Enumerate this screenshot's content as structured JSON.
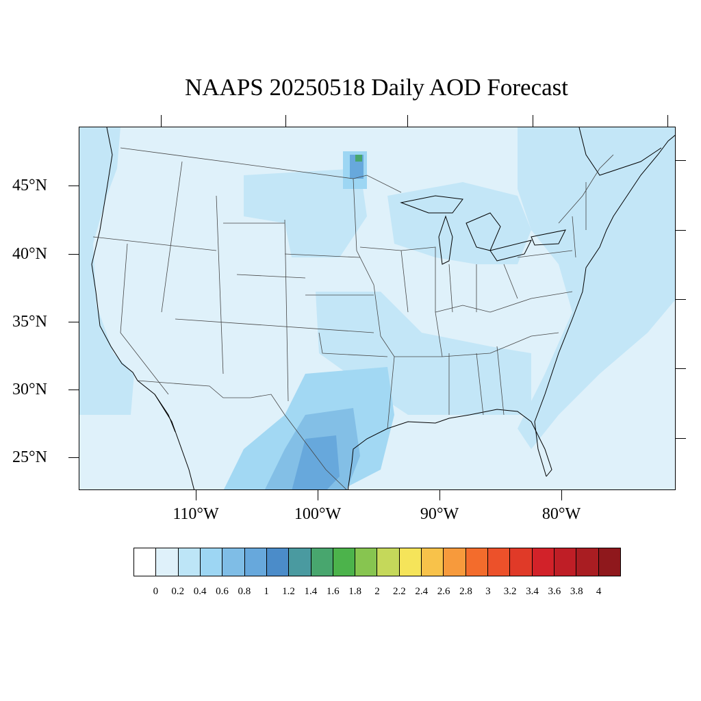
{
  "title": "NAAPS 20250518 Daily AOD Forecast",
  "lat_labels": [
    "45°N",
    "40°N",
    "35°N",
    "30°N",
    "25°N"
  ],
  "lon_labels": [
    "110°W",
    "100°W",
    "90°W",
    "80°W"
  ],
  "colorbar": {
    "colors": [
      "#ffffff",
      "#dff1fa",
      "#bde5f7",
      "#9dd6f3",
      "#7fbde6",
      "#67a8dc",
      "#4b8cc9",
      "#4a9aa0",
      "#48a66e",
      "#4cb34b",
      "#87c550",
      "#c5d85a",
      "#f5e45a",
      "#f8c24a",
      "#f79a3c",
      "#f36c2c",
      "#ec512a",
      "#e03a28",
      "#d22229",
      "#bf1e26",
      "#a91d22",
      "#8f181c"
    ],
    "labels": [
      "0",
      "0.2",
      "0.4",
      "0.6",
      "0.8",
      "1",
      "1.2",
      "1.4",
      "1.6",
      "1.8",
      "2",
      "2.2",
      "2.4",
      "2.6",
      "2.8",
      "3",
      "3.2",
      "3.4",
      "3.6",
      "3.8",
      "4"
    ]
  },
  "colors": {
    "background_aod": "#dff1fa",
    "coastline": "#000000",
    "state_border": "#555555"
  }
}
